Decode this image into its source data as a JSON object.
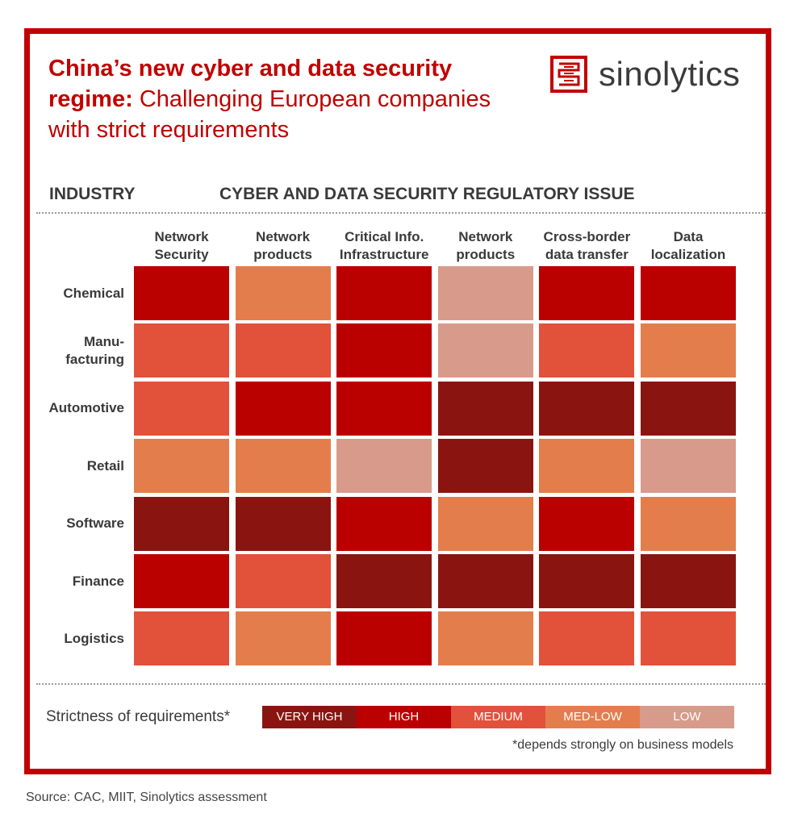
{
  "title": {
    "bold": "China’s new cyber and data security regime:",
    "rest": " Challenging European companies with strict requirements"
  },
  "logo": {
    "text": "sinolytics",
    "icon": "sinolytics-logo-icon"
  },
  "headers": {
    "industry": "INDUSTRY",
    "issue": "CYBER AND DATA SECURITY REGULATORY ISSUE"
  },
  "legend": {
    "label": "Strictness of requirements*",
    "items": [
      {
        "label": "VERY HIGH",
        "color": "#8a1510"
      },
      {
        "label": "HIGH",
        "color": "#bb0000"
      },
      {
        "label": "MEDIUM",
        "color": "#e2513a"
      },
      {
        "label": "MED-LOW",
        "color": "#e37e4c"
      },
      {
        "label": "LOW",
        "color": "#d89b8b"
      }
    ]
  },
  "footnote": "*depends strongly on business models",
  "source": "Source: CAC, MIIT, Sinolytics assessment",
  "chart_data": {
    "type": "heatmap",
    "title": "China’s new cyber and data security regime: Challenging European companies with strict requirements",
    "xlabel": "CYBER AND DATA SECURITY REGULATORY ISSUE",
    "ylabel": "INDUSTRY",
    "columns": [
      [
        "Network",
        "Security"
      ],
      [
        "Network",
        "products"
      ],
      [
        "Critical Info.",
        "Infrastructure"
      ],
      [
        "Network",
        "products"
      ],
      [
        "Cross-border",
        "data transfer"
      ],
      [
        "Data",
        "localization"
      ]
    ],
    "rows": [
      [
        "Chemical"
      ],
      [
        "Manu-",
        "facturing"
      ],
      [
        "Automotive"
      ],
      [
        "Retail"
      ],
      [
        "Software"
      ],
      [
        "Finance"
      ],
      [
        "Logistics"
      ]
    ],
    "scale": [
      "VERY HIGH",
      "HIGH",
      "MEDIUM",
      "MED-LOW",
      "LOW"
    ],
    "values": [
      [
        "HIGH",
        "MED-LOW",
        "HIGH",
        "LOW",
        "HIGH",
        "HIGH"
      ],
      [
        "MEDIUM",
        "MEDIUM",
        "HIGH",
        "LOW",
        "MEDIUM",
        "MED-LOW"
      ],
      [
        "MEDIUM",
        "HIGH",
        "HIGH",
        "VERY HIGH",
        "VERY HIGH",
        "VERY HIGH"
      ],
      [
        "MED-LOW",
        "MED-LOW",
        "LOW",
        "VERY HIGH",
        "MED-LOW",
        "LOW"
      ],
      [
        "VERY HIGH",
        "VERY HIGH",
        "HIGH",
        "MED-LOW",
        "HIGH",
        "MED-LOW"
      ],
      [
        "HIGH",
        "MEDIUM",
        "VERY HIGH",
        "VERY HIGH",
        "VERY HIGH",
        "VERY HIGH"
      ],
      [
        "MEDIUM",
        "MED-LOW",
        "HIGH",
        "MED-LOW",
        "MEDIUM",
        "MEDIUM"
      ]
    ]
  }
}
